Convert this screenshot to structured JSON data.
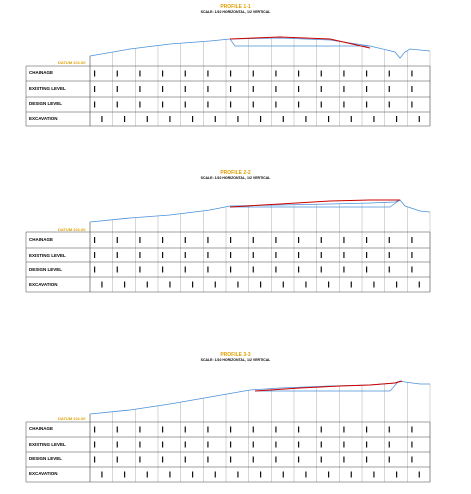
{
  "profiles": [
    {
      "title": "PROFILE 1-1",
      "scale": "SCALE: 1/10 HORIZONTAL, 1/2 VERTICAL",
      "datum": "DATUM 101.00",
      "rows": [
        "CHAINAGE",
        "EXISTING LEVEL",
        "DESIGN LEVEL",
        "EXCAVATION"
      ]
    },
    {
      "title": "PROFILE 2-2",
      "scale": "SCALE: 1/10 HORIZONTAL, 1/2 VERTICAL",
      "datum": "DATUM 101.00",
      "rows": [
        "CHAINAGE",
        "EXISTING LEVEL",
        "DESIGN LEVEL",
        "EXCAVATION"
      ]
    },
    {
      "title": "PROFILE 3-3",
      "scale": "SCALE: 1/10 HORIZONTAL, 1/2 VERTICAL",
      "datum": "DATUM 101.00",
      "rows": [
        "CHAINAGE",
        "EXISTING LEVEL",
        "DESIGN LEVEL",
        "EXCAVATION"
      ]
    }
  ],
  "colors": {
    "existing": "#4a90d9",
    "design": "#cc0000",
    "cut": "#2ca02c",
    "title": "#e0a000"
  }
}
